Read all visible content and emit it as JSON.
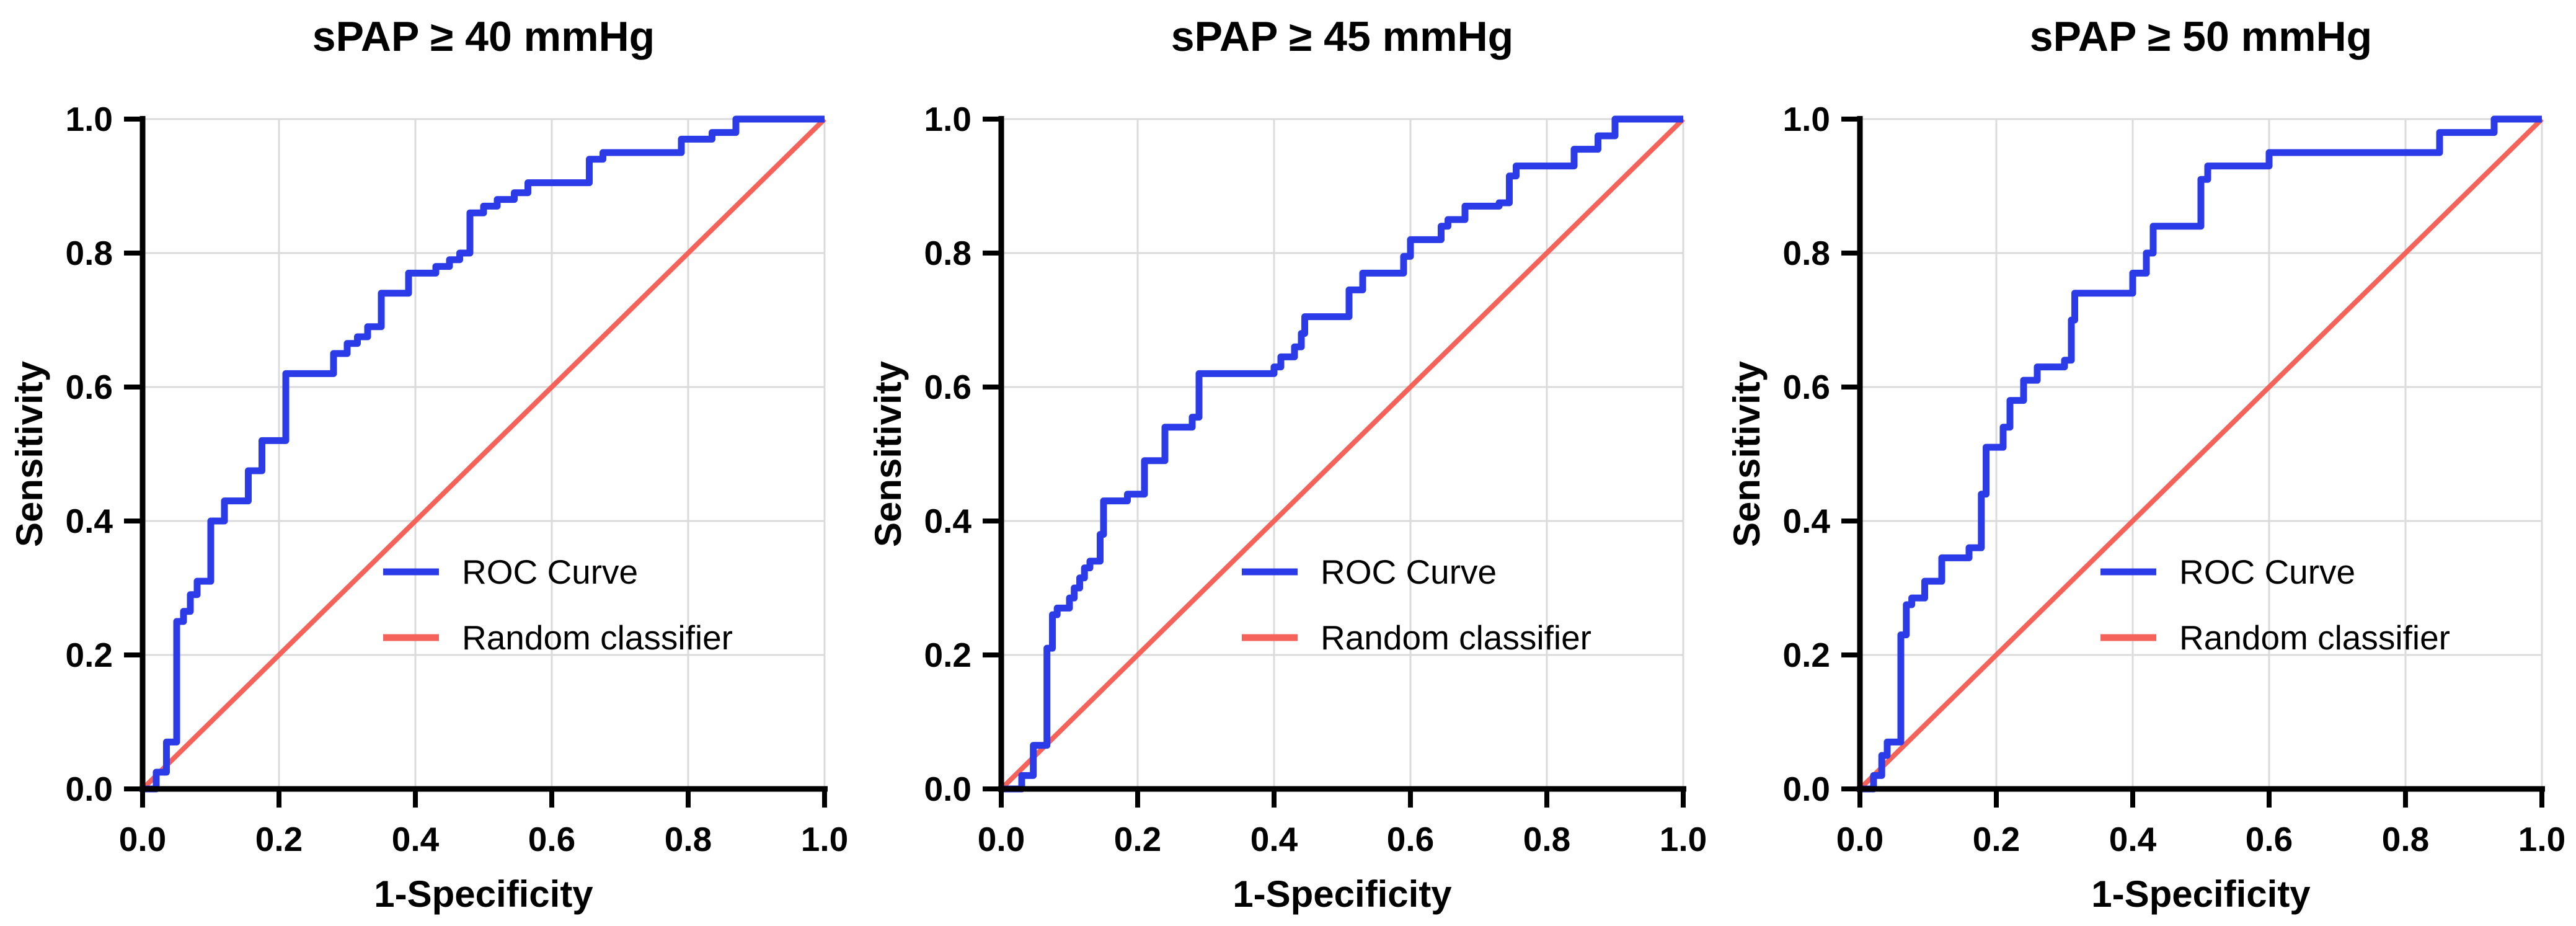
{
  "figure": {
    "background": "#FFFFFF",
    "colors": {
      "roc": "#2B3BE8",
      "random": "#F4625A",
      "grid": "#DBDBDB",
      "axis": "#000000",
      "text": "#000000"
    },
    "legend": {
      "position": "inside-center-right",
      "items": [
        {
          "label": "ROC Curve",
          "color": "#2B3BE8"
        },
        {
          "label": "Random classifier",
          "color": "#F4625A"
        }
      ]
    },
    "axes": {
      "x_label": "1-Specificity",
      "y_label": "Sensitivity",
      "x_ticks": [
        "0.0",
        "0.2",
        "0.4",
        "0.6",
        "0.8",
        "1.0"
      ],
      "y_ticks": [
        "0.0",
        "0.2",
        "0.4",
        "0.6",
        "0.8",
        "1.0"
      ],
      "x_range": [
        0,
        1
      ],
      "y_range": [
        0,
        1
      ],
      "grid": true
    }
  },
  "chart_data": [
    {
      "type": "line",
      "title": "sPAP ≥ 40 mmHg",
      "xlabel": "1-Specificity",
      "ylabel": "Sensitivity",
      "xlim": [
        0,
        1
      ],
      "ylim": [
        0,
        1
      ],
      "grid": true,
      "legend_position": "inside lower-right",
      "series": [
        {
          "name": "ROC Curve",
          "style": "step",
          "color": "#2B3BE8",
          "points": [
            [
              0,
              0
            ],
            [
              0.02,
              0
            ],
            [
              0.02,
              0.025
            ],
            [
              0.035,
              0.025
            ],
            [
              0.035,
              0.07
            ],
            [
              0.05,
              0.07
            ],
            [
              0.05,
              0.25
            ],
            [
              0.06,
              0.25
            ],
            [
              0.06,
              0.265
            ],
            [
              0.07,
              0.265
            ],
            [
              0.07,
              0.29
            ],
            [
              0.08,
              0.29
            ],
            [
              0.08,
              0.31
            ],
            [
              0.1,
              0.31
            ],
            [
              0.1,
              0.4
            ],
            [
              0.12,
              0.4
            ],
            [
              0.12,
              0.43
            ],
            [
              0.155,
              0.43
            ],
            [
              0.155,
              0.475
            ],
            [
              0.175,
              0.475
            ],
            [
              0.175,
              0.52
            ],
            [
              0.21,
              0.52
            ],
            [
              0.21,
              0.62
            ],
            [
              0.28,
              0.62
            ],
            [
              0.28,
              0.65
            ],
            [
              0.3,
              0.65
            ],
            [
              0.3,
              0.665
            ],
            [
              0.315,
              0.665
            ],
            [
              0.315,
              0.675
            ],
            [
              0.33,
              0.675
            ],
            [
              0.33,
              0.69
            ],
            [
              0.35,
              0.69
            ],
            [
              0.35,
              0.74
            ],
            [
              0.39,
              0.74
            ],
            [
              0.39,
              0.77
            ],
            [
              0.43,
              0.77
            ],
            [
              0.43,
              0.78
            ],
            [
              0.45,
              0.78
            ],
            [
              0.45,
              0.79
            ],
            [
              0.465,
              0.79
            ],
            [
              0.465,
              0.8
            ],
            [
              0.48,
              0.8
            ],
            [
              0.48,
              0.86
            ],
            [
              0.5,
              0.86
            ],
            [
              0.5,
              0.87
            ],
            [
              0.52,
              0.87
            ],
            [
              0.52,
              0.88
            ],
            [
              0.545,
              0.88
            ],
            [
              0.545,
              0.89
            ],
            [
              0.565,
              0.89
            ],
            [
              0.565,
              0.905
            ],
            [
              0.655,
              0.905
            ],
            [
              0.655,
              0.94
            ],
            [
              0.675,
              0.94
            ],
            [
              0.675,
              0.95
            ],
            [
              0.79,
              0.95
            ],
            [
              0.79,
              0.97
            ],
            [
              0.835,
              0.97
            ],
            [
              0.835,
              0.98
            ],
            [
              0.87,
              0.98
            ],
            [
              0.87,
              1.0
            ],
            [
              1.0,
              1.0
            ]
          ]
        },
        {
          "name": "Random classifier",
          "style": "straight",
          "color": "#F4625A",
          "points": [
            [
              0,
              0
            ],
            [
              1,
              1
            ]
          ]
        }
      ]
    },
    {
      "type": "line",
      "title": "sPAP ≥ 45 mmHg",
      "xlabel": "1-Specificity",
      "ylabel": "Sensitivity",
      "xlim": [
        0,
        1
      ],
      "ylim": [
        0,
        1
      ],
      "grid": true,
      "legend_position": "inside lower-right",
      "series": [
        {
          "name": "ROC Curve",
          "style": "step",
          "color": "#2B3BE8",
          "points": [
            [
              0,
              0
            ],
            [
              0.03,
              0
            ],
            [
              0.03,
              0.02
            ],
            [
              0.047,
              0.02
            ],
            [
              0.047,
              0.065
            ],
            [
              0.067,
              0.065
            ],
            [
              0.067,
              0.21
            ],
            [
              0.075,
              0.21
            ],
            [
              0.075,
              0.26
            ],
            [
              0.082,
              0.26
            ],
            [
              0.082,
              0.27
            ],
            [
              0.1,
              0.27
            ],
            [
              0.1,
              0.285
            ],
            [
              0.107,
              0.285
            ],
            [
              0.107,
              0.3
            ],
            [
              0.115,
              0.3
            ],
            [
              0.115,
              0.315
            ],
            [
              0.122,
              0.315
            ],
            [
              0.122,
              0.33
            ],
            [
              0.13,
              0.33
            ],
            [
              0.13,
              0.34
            ],
            [
              0.145,
              0.34
            ],
            [
              0.145,
              0.38
            ],
            [
              0.15,
              0.38
            ],
            [
              0.15,
              0.43
            ],
            [
              0.185,
              0.43
            ],
            [
              0.185,
              0.44
            ],
            [
              0.21,
              0.44
            ],
            [
              0.21,
              0.49
            ],
            [
              0.24,
              0.49
            ],
            [
              0.24,
              0.54
            ],
            [
              0.28,
              0.54
            ],
            [
              0.28,
              0.555
            ],
            [
              0.29,
              0.555
            ],
            [
              0.29,
              0.62
            ],
            [
              0.4,
              0.62
            ],
            [
              0.4,
              0.63
            ],
            [
              0.41,
              0.63
            ],
            [
              0.41,
              0.645
            ],
            [
              0.43,
              0.645
            ],
            [
              0.43,
              0.66
            ],
            [
              0.44,
              0.66
            ],
            [
              0.44,
              0.68
            ],
            [
              0.445,
              0.68
            ],
            [
              0.445,
              0.705
            ],
            [
              0.51,
              0.705
            ],
            [
              0.51,
              0.745
            ],
            [
              0.53,
              0.745
            ],
            [
              0.53,
              0.77
            ],
            [
              0.59,
              0.77
            ],
            [
              0.59,
              0.795
            ],
            [
              0.6,
              0.795
            ],
            [
              0.6,
              0.82
            ],
            [
              0.645,
              0.82
            ],
            [
              0.645,
              0.84
            ],
            [
              0.655,
              0.84
            ],
            [
              0.655,
              0.85
            ],
            [
              0.68,
              0.85
            ],
            [
              0.68,
              0.87
            ],
            [
              0.73,
              0.87
            ],
            [
              0.73,
              0.875
            ],
            [
              0.745,
              0.875
            ],
            [
              0.745,
              0.915
            ],
            [
              0.755,
              0.915
            ],
            [
              0.755,
              0.93
            ],
            [
              0.84,
              0.93
            ],
            [
              0.84,
              0.955
            ],
            [
              0.875,
              0.955
            ],
            [
              0.875,
              0.975
            ],
            [
              0.9,
              0.975
            ],
            [
              0.9,
              1.0
            ],
            [
              1.0,
              1.0
            ]
          ]
        },
        {
          "name": "Random classifier",
          "style": "straight",
          "color": "#F4625A",
          "points": [
            [
              0,
              0
            ],
            [
              1,
              1
            ]
          ]
        }
      ]
    },
    {
      "type": "line",
      "title": "sPAP ≥ 50 mmHg",
      "xlabel": "1-Specificity",
      "ylabel": "Sensitivity",
      "xlim": [
        0,
        1
      ],
      "ylim": [
        0,
        1
      ],
      "grid": true,
      "legend_position": "inside lower-right",
      "series": [
        {
          "name": "ROC Curve",
          "style": "step",
          "color": "#2B3BE8",
          "points": [
            [
              0,
              0
            ],
            [
              0.02,
              0
            ],
            [
              0.02,
              0.02
            ],
            [
              0.032,
              0.02
            ],
            [
              0.032,
              0.05
            ],
            [
              0.04,
              0.05
            ],
            [
              0.04,
              0.07
            ],
            [
              0.06,
              0.07
            ],
            [
              0.06,
              0.23
            ],
            [
              0.068,
              0.23
            ],
            [
              0.068,
              0.275
            ],
            [
              0.076,
              0.275
            ],
            [
              0.076,
              0.285
            ],
            [
              0.095,
              0.285
            ],
            [
              0.095,
              0.31
            ],
            [
              0.12,
              0.31
            ],
            [
              0.12,
              0.345
            ],
            [
              0.16,
              0.345
            ],
            [
              0.16,
              0.36
            ],
            [
              0.178,
              0.36
            ],
            [
              0.178,
              0.44
            ],
            [
              0.185,
              0.44
            ],
            [
              0.185,
              0.51
            ],
            [
              0.21,
              0.51
            ],
            [
              0.21,
              0.54
            ],
            [
              0.22,
              0.54
            ],
            [
              0.22,
              0.58
            ],
            [
              0.24,
              0.58
            ],
            [
              0.24,
              0.61
            ],
            [
              0.26,
              0.61
            ],
            [
              0.26,
              0.63
            ],
            [
              0.3,
              0.63
            ],
            [
              0.3,
              0.64
            ],
            [
              0.31,
              0.64
            ],
            [
              0.31,
              0.7
            ],
            [
              0.315,
              0.7
            ],
            [
              0.315,
              0.74
            ],
            [
              0.4,
              0.74
            ],
            [
              0.4,
              0.77
            ],
            [
              0.42,
              0.77
            ],
            [
              0.42,
              0.8
            ],
            [
              0.43,
              0.8
            ],
            [
              0.43,
              0.84
            ],
            [
              0.5,
              0.84
            ],
            [
              0.5,
              0.91
            ],
            [
              0.51,
              0.91
            ],
            [
              0.51,
              0.93
            ],
            [
              0.6,
              0.93
            ],
            [
              0.6,
              0.95
            ],
            [
              0.85,
              0.95
            ],
            [
              0.85,
              0.98
            ],
            [
              0.93,
              0.98
            ],
            [
              0.93,
              1.0
            ],
            [
              1.0,
              1.0
            ]
          ]
        },
        {
          "name": "Random classifier",
          "style": "straight",
          "color": "#F4625A",
          "points": [
            [
              0,
              0
            ],
            [
              1,
              1
            ]
          ]
        }
      ]
    }
  ]
}
